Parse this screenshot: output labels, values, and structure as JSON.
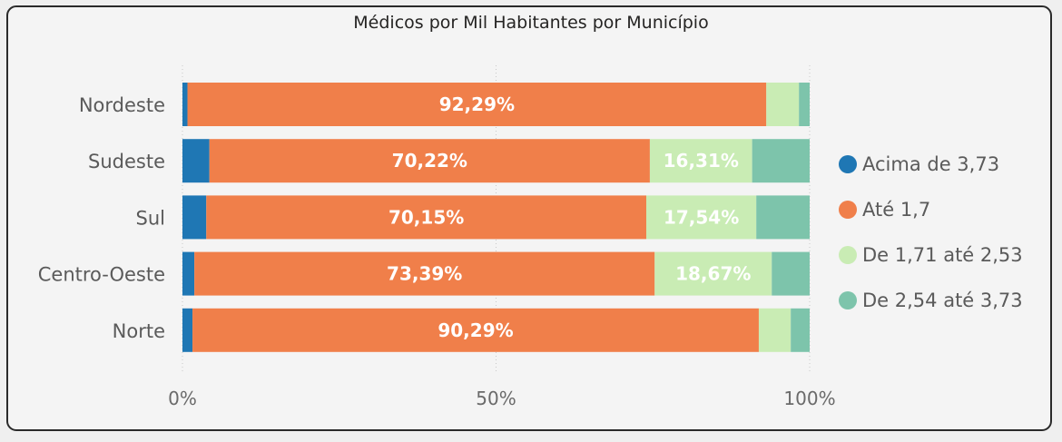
{
  "chart_data": {
    "type": "bar",
    "orientation": "horizontal",
    "stacked": "100%",
    "title": "Médicos por Mil Habitantes por Município",
    "xlabel": "",
    "ylabel": "",
    "xlim": [
      0,
      100
    ],
    "x_ticks": [
      "0%",
      "50%",
      "100%"
    ],
    "grid": "vertical dotted",
    "legend_position": "right",
    "categories": [
      "Nordeste",
      "Sudeste",
      "Sul",
      "Centro-Oeste",
      "Norte"
    ],
    "series": [
      {
        "name": "Acima de 3,73",
        "color": "#1f77b4",
        "values": [
          0.8,
          4.3,
          3.8,
          1.9,
          1.6
        ],
        "labels": [
          "",
          "",
          "",
          "",
          ""
        ]
      },
      {
        "name": "Até 1,7",
        "color": "#f07f4a",
        "values": [
          92.29,
          70.22,
          70.15,
          73.39,
          90.29
        ],
        "labels": [
          "92,29%",
          "70,22%",
          "70,15%",
          "73,39%",
          "90,29%"
        ]
      },
      {
        "name": "De 1,71 até 2,53",
        "color": "#c9ecb4",
        "values": [
          5.2,
          16.31,
          17.54,
          18.67,
          5.1
        ],
        "labels": [
          "",
          "16,31%",
          "17,54%",
          "18,67%",
          ""
        ]
      },
      {
        "name": "De 2,54 até 3,73",
        "color": "#7dc4ab",
        "values": [
          1.71,
          9.17,
          8.51,
          6.04,
          3.01
        ],
        "labels": [
          "",
          "",
          "",
          "",
          ""
        ]
      }
    ]
  }
}
